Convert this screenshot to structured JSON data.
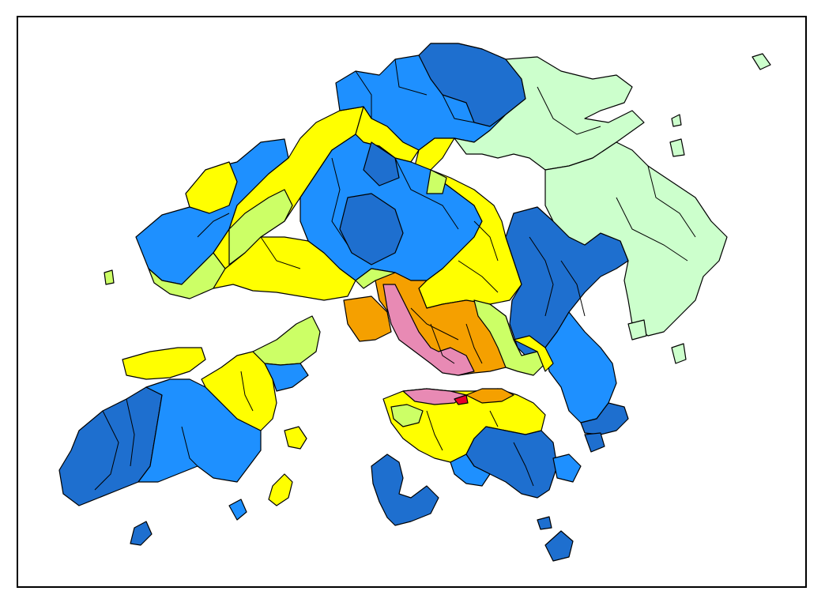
{
  "map": {
    "region": "Hong Kong",
    "colors": {
      "dark_blue": "#1e6fcf",
      "medium_blue": "#1e90ff",
      "yellow": "#ffff00",
      "yellow_green": "#ccff66",
      "light_green": "#ccffcc",
      "orange": "#f5a000",
      "pink": "#e88ab4",
      "red": "#e8002a",
      "border": "#000000",
      "background": "#ffffff"
    }
  }
}
